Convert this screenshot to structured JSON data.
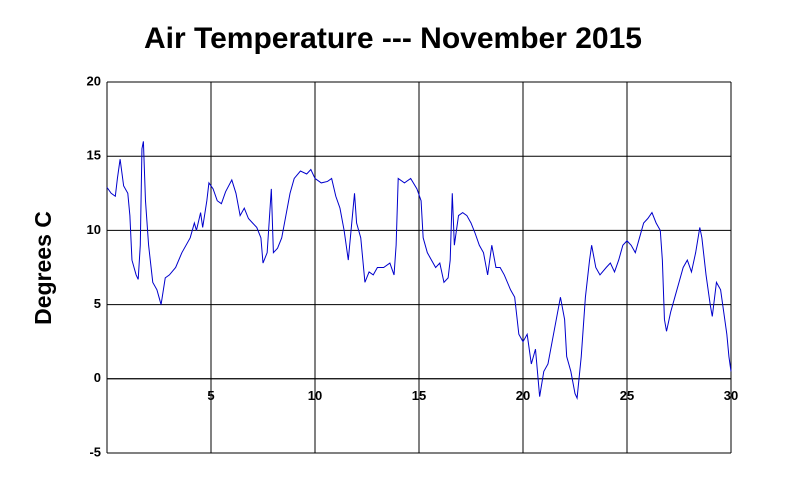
{
  "chart_data": {
    "type": "line",
    "title": "Air Temperature --- November 2015",
    "y_label": "Degrees C",
    "x": [
      0,
      0.2,
      0.4,
      0.5,
      0.63,
      0.8,
      1.0,
      1.1,
      1.2,
      1.4,
      1.5,
      1.6,
      1.68,
      1.75,
      1.85,
      2.0,
      2.2,
      2.4,
      2.5,
      2.6,
      2.8,
      3.0,
      3.3,
      3.6,
      4.0,
      4.2,
      4.3,
      4.5,
      4.6,
      4.8,
      4.9,
      5.1,
      5.3,
      5.5,
      5.7,
      6.0,
      6.2,
      6.4,
      6.6,
      6.8,
      7.0,
      7.2,
      7.4,
      7.5,
      7.7,
      7.9,
      8.0,
      8.2,
      8.4,
      8.6,
      8.8,
      9.0,
      9.3,
      9.6,
      9.8,
      10.0,
      10.3,
      10.6,
      10.8,
      11.0,
      11.2,
      11.4,
      11.6,
      11.8,
      11.9,
      12.0,
      12.2,
      12.4,
      12.6,
      12.8,
      13.0,
      13.3,
      13.6,
      13.8,
      13.9,
      14.0,
      14.3,
      14.6,
      14.9,
      15.1,
      15.2,
      15.4,
      15.6,
      15.8,
      16.0,
      16.2,
      16.4,
      16.5,
      16.6,
      16.7,
      16.9,
      17.1,
      17.3,
      17.5,
      17.7,
      17.9,
      18.1,
      18.3,
      18.5,
      18.7,
      18.9,
      19.1,
      19.4,
      19.6,
      19.8,
      20.0,
      20.2,
      20.4,
      20.6,
      20.8,
      21.0,
      21.2,
      21.4,
      21.6,
      21.8,
      22.0,
      22.1,
      22.3,
      22.5,
      22.6,
      22.8,
      23.0,
      23.2,
      23.3,
      23.5,
      23.7,
      24.0,
      24.2,
      24.4,
      24.6,
      24.8,
      25.0,
      25.2,
      25.4,
      25.6,
      25.8,
      26.0,
      26.2,
      26.4,
      26.6,
      26.7,
      26.8,
      26.9,
      27.1,
      27.3,
      27.5,
      27.7,
      27.9,
      28.1,
      28.3,
      28.5,
      28.6,
      28.8,
      29.0,
      29.1,
      29.3,
      29.5,
      29.7,
      29.8,
      29.9,
      30.0
    ],
    "series": [
      {
        "name": "Air Temperature",
        "color": "#0000cc",
        "values": [
          12.9,
          12.5,
          12.3,
          13.5,
          14.8,
          13.0,
          12.5,
          11,
          8,
          7,
          6.7,
          9,
          15.5,
          16.0,
          12,
          9,
          6.5,
          6.0,
          5.5,
          5.0,
          6.8,
          7.0,
          7.5,
          8.5,
          9.5,
          10.5,
          10.0,
          11.2,
          10.2,
          12.0,
          13.2,
          12.8,
          12.0,
          11.8,
          12.6,
          13.4,
          12.5,
          11.0,
          11.5,
          10.8,
          10.5,
          10.2,
          9.5,
          7.8,
          8.5,
          12.8,
          8.5,
          8.8,
          9.5,
          11,
          12.5,
          13.5,
          14.0,
          13.8,
          14.1,
          13.5,
          13.2,
          13.3,
          13.5,
          12.3,
          11.5,
          10.0,
          8.0,
          11.0,
          12.5,
          10.5,
          9.5,
          6.5,
          7.2,
          7.0,
          7.5,
          7.5,
          7.8,
          7.0,
          9.0,
          13.5,
          13.2,
          13.5,
          12.8,
          12.0,
          9.5,
          8.5,
          8.0,
          7.5,
          7.8,
          6.5,
          6.8,
          8.0,
          12.5,
          9.0,
          11.0,
          11.2,
          11.0,
          10.5,
          9.8,
          9.0,
          8.5,
          7.0,
          9.0,
          7.5,
          7.5,
          7.0,
          6.0,
          5.5,
          3.0,
          2.5,
          3.0,
          1.0,
          2.0,
          -1.2,
          0.5,
          1.0,
          2.5,
          4.0,
          5.5,
          4.0,
          1.5,
          0.5,
          -1.0,
          -1.3,
          1.5,
          5.5,
          8.0,
          9.0,
          7.5,
          7.0,
          7.5,
          7.8,
          7.2,
          8.0,
          9.0,
          9.3,
          9.0,
          8.5,
          9.5,
          10.5,
          10.8,
          11.2,
          10.5,
          10.0,
          8.0,
          4.0,
          3.2,
          4.5,
          5.5,
          6.5,
          7.5,
          8.0,
          7.2,
          8.5,
          10.2,
          9.5,
          7.0,
          5.0,
          4.2,
          6.5,
          6.0,
          4.0,
          3.0,
          1.5,
          0.5
        ]
      }
    ],
    "xlim": [
      0,
      30
    ],
    "xticks": [
      5,
      10,
      15,
      20,
      25,
      30
    ],
    "ylim": [
      -5,
      20
    ],
    "yticks": [
      -5,
      0,
      5,
      10,
      15,
      20
    ],
    "grid": true
  }
}
